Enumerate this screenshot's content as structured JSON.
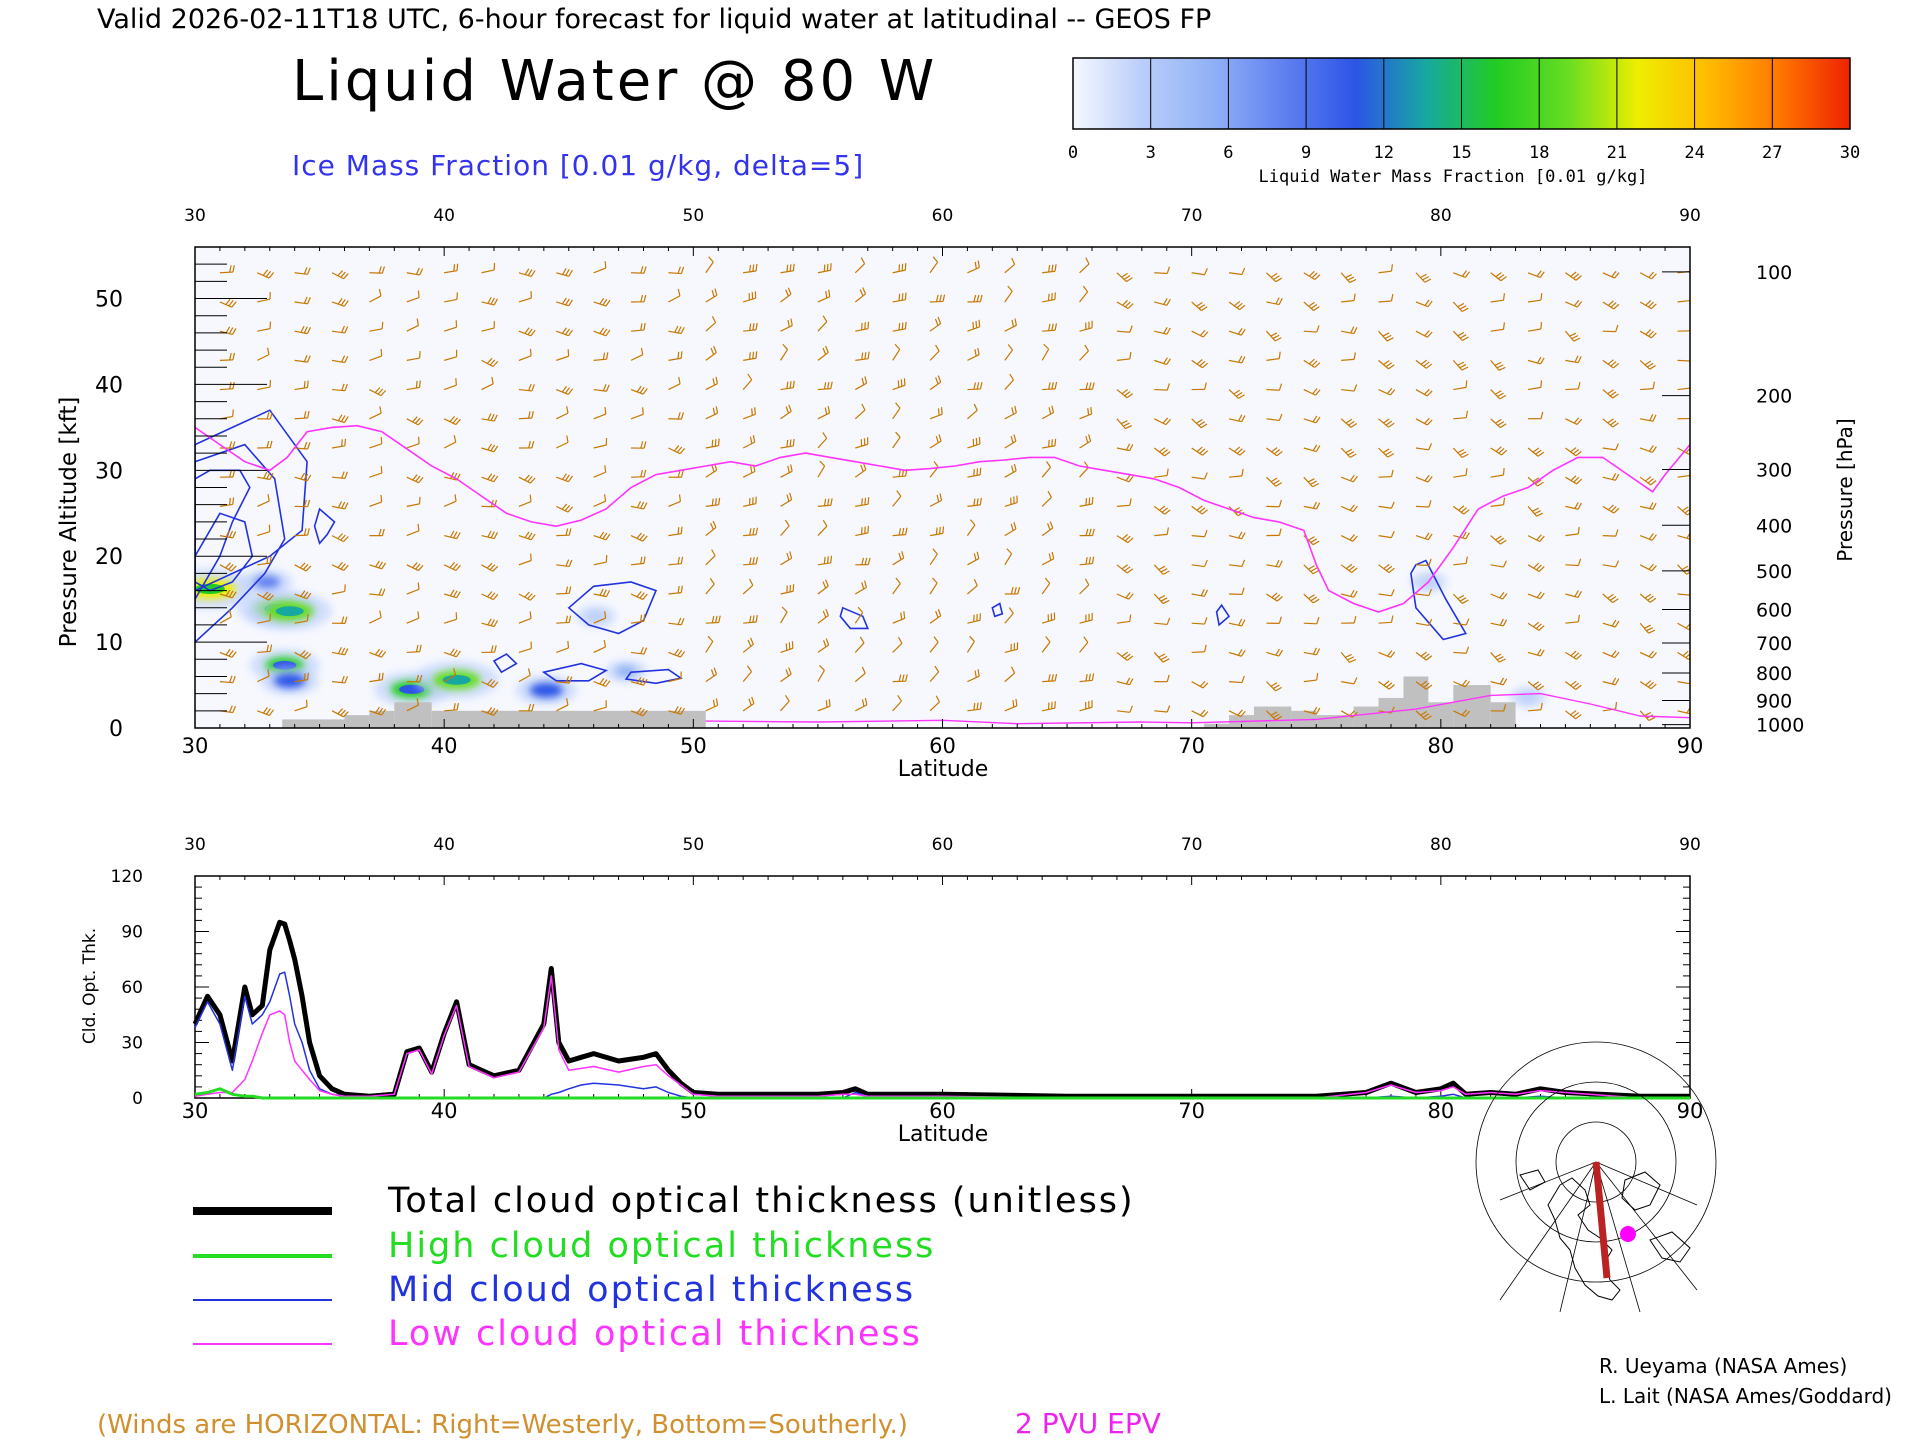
{
  "header": {
    "valid_line": "Valid 2026-02-11T18 UTC, 6-hour forecast for liquid water at latitudinal -- GEOS FP",
    "title": "Liquid Water @ 80 W",
    "subtitle": "Ice Mass Fraction [0.01 g/kg, delta=5]"
  },
  "colorbar": {
    "ticks": [
      "0",
      "3",
      "6",
      "9",
      "12",
      "15",
      "18",
      "21",
      "24",
      "27",
      "30"
    ],
    "label": "Liquid Water Mass Fraction [0.01 g/kg]",
    "colors": [
      "#f6f8fe",
      "#b9cdfa",
      "#8fb0f6",
      "#5f7ff0",
      "#2c55e6",
      "#17a8a0",
      "#22cc22",
      "#66dd22",
      "#eeee00",
      "#ffbb00",
      "#ff7700",
      "#ee2200"
    ]
  },
  "colors": {
    "wind_barb": "#c87800",
    "tropopause": "#ff33ff",
    "ice_contour": "#2233dd",
    "terrain": "#c0c0c0",
    "total_line": "#000000",
    "high_line": "#22dd22",
    "mid_line": "#2233dd",
    "low_line": "#ff33ff"
  },
  "chart_data": [
    {
      "type": "heatmap",
      "title": "Liquid Water @ 80 W",
      "xlabel": "Latitude",
      "ylabel": "Pressure Altitude [kft]",
      "ylabel_right": "Pressure [hPa]",
      "xlim": [
        30,
        90
      ],
      "ylim": [
        0,
        56
      ],
      "x_ticks": [
        "30",
        "40",
        "50",
        "60",
        "70",
        "80",
        "90"
      ],
      "top_ticks": [
        "30",
        "40",
        "50",
        "60",
        "70",
        "80",
        "90"
      ],
      "y_ticks": [
        "0",
        "10",
        "20",
        "30",
        "40",
        "50"
      ],
      "y_tick_values": [
        0,
        10,
        20,
        30,
        40,
        50
      ],
      "pressure_ticks": [
        {
          "label": "100",
          "kft": 53.1
        },
        {
          "label": "200",
          "kft": 38.7
        },
        {
          "label": "300",
          "kft": 30.1
        },
        {
          "label": "400",
          "kft": 23.6
        },
        {
          "label": "500",
          "kft": 18.3
        },
        {
          "label": "600",
          "kft": 13.8
        },
        {
          "label": "700",
          "kft": 9.9
        },
        {
          "label": "800",
          "kft": 6.4
        },
        {
          "label": "900",
          "kft": 3.2
        },
        {
          "label": "1000",
          "kft": 0.4
        }
      ],
      "liquid_water_blobs": [
        {
          "lat": 30.6,
          "kft": 16.2,
          "value": 22
        },
        {
          "lat": 33.3,
          "kft": 13.9,
          "value": 18
        },
        {
          "lat": 33.8,
          "kft": 13.6,
          "value": 20
        },
        {
          "lat": 33.6,
          "kft": 7.3,
          "value": 15
        },
        {
          "lat": 33.8,
          "kft": 5.5,
          "value": 11
        },
        {
          "lat": 32.9,
          "kft": 17.0,
          "value": 8
        },
        {
          "lat": 38.7,
          "kft": 4.5,
          "value": 17
        },
        {
          "lat": 40.5,
          "kft": 5.6,
          "value": 20
        },
        {
          "lat": 44.1,
          "kft": 4.4,
          "value": 12
        },
        {
          "lat": 46.1,
          "kft": 13.0,
          "value": 4
        },
        {
          "lat": 47.3,
          "kft": 6.6,
          "value": 5
        },
        {
          "lat": 79.5,
          "kft": 17.0,
          "value": 3
        },
        {
          "lat": 83.5,
          "kft": 3.6,
          "value": 3
        }
      ],
      "ice_contours": [
        [
          [
            30.0,
            20.0
          ],
          [
            31.0,
            25.0
          ],
          [
            32.0,
            24.0
          ],
          [
            32.3,
            20.0
          ],
          [
            31.5,
            17.0
          ],
          [
            30.6,
            16.0
          ],
          [
            30.0,
            17.0
          ]
        ],
        [
          [
            30.0,
            15.0
          ],
          [
            31.0,
            20.0
          ],
          [
            31.5,
            24.0
          ],
          [
            32.2,
            28.0
          ],
          [
            31.8,
            30.0
          ],
          [
            30.6,
            30.0
          ],
          [
            30.0,
            29.0
          ]
        ],
        [
          [
            30.0,
            10.0
          ],
          [
            31.5,
            14.0
          ],
          [
            32.8,
            18.0
          ],
          [
            33.6,
            22.0
          ],
          [
            33.2,
            29.0
          ],
          [
            32.0,
            33.0
          ],
          [
            30.0,
            31.0
          ]
        ],
        [
          [
            30.0,
            16.0
          ],
          [
            33.0,
            20.0
          ],
          [
            34.3,
            23.0
          ],
          [
            34.5,
            31.0
          ],
          [
            33.0,
            37.0
          ],
          [
            31.5,
            35.0
          ],
          [
            30.0,
            33.0
          ]
        ],
        [
          [
            35.0,
            21.5
          ],
          [
            35.3,
            22.5
          ],
          [
            35.6,
            24.0
          ],
          [
            35.0,
            25.5
          ],
          [
            34.8,
            23.5
          ]
        ],
        [
          [
            45.0,
            14.0
          ],
          [
            46.0,
            16.5
          ],
          [
            47.5,
            17.0
          ],
          [
            48.5,
            16.0
          ],
          [
            48.0,
            12.5
          ],
          [
            47.0,
            11.0
          ],
          [
            45.8,
            12.0
          ]
        ],
        [
          [
            44.0,
            6.5
          ],
          [
            45.5,
            7.5
          ],
          [
            46.5,
            6.7
          ],
          [
            45.8,
            5.5
          ],
          [
            44.5,
            5.5
          ]
        ],
        [
          [
            47.5,
            6.5
          ],
          [
            49.0,
            6.8
          ],
          [
            49.5,
            5.8
          ],
          [
            48.5,
            5.2
          ],
          [
            47.3,
            5.7
          ]
        ],
        [
          [
            42.0,
            7.8
          ],
          [
            42.5,
            8.6
          ],
          [
            42.9,
            7.5
          ],
          [
            42.3,
            6.5
          ]
        ],
        [
          [
            56.0,
            14.0
          ],
          [
            56.8,
            13.0
          ],
          [
            57.0,
            11.6
          ],
          [
            56.3,
            11.6
          ],
          [
            55.9,
            13.0
          ]
        ],
        [
          [
            62.0,
            14.0
          ],
          [
            62.3,
            14.5
          ],
          [
            62.4,
            13.3
          ],
          [
            62.1,
            13.0
          ]
        ],
        [
          [
            79.0,
            19.0
          ],
          [
            79.4,
            19.5
          ],
          [
            80.2,
            15.0
          ],
          [
            81.0,
            11.0
          ],
          [
            80.1,
            10.3
          ],
          [
            79.0,
            14.0
          ],
          [
            78.8,
            18.0
          ]
        ],
        [
          [
            71.0,
            13.5
          ],
          [
            71.2,
            14.3
          ],
          [
            71.5,
            13.0
          ],
          [
            71.1,
            12.0
          ]
        ]
      ],
      "tropopause_2pvu": [
        [
          30.0,
          35.0
        ],
        [
          31.0,
          33.0
        ],
        [
          32.0,
          31.0
        ],
        [
          33.0,
          30.0
        ],
        [
          33.7,
          31.5
        ],
        [
          34.5,
          34.5
        ],
        [
          35.5,
          35.0
        ],
        [
          36.5,
          35.2
        ],
        [
          37.5,
          34.5
        ],
        [
          38.5,
          32.5
        ],
        [
          39.5,
          30.5
        ],
        [
          40.5,
          29.0
        ],
        [
          41.5,
          27.0
        ],
        [
          42.5,
          25.0
        ],
        [
          43.5,
          24.0
        ],
        [
          44.5,
          23.5
        ],
        [
          45.5,
          24.2
        ],
        [
          46.5,
          25.5
        ],
        [
          47.5,
          28.0
        ],
        [
          48.5,
          29.5
        ],
        [
          49.5,
          30.0
        ],
        [
          50.5,
          30.5
        ],
        [
          51.5,
          31.0
        ],
        [
          52.5,
          30.5
        ],
        [
          53.5,
          31.5
        ],
        [
          54.5,
          32.0
        ],
        [
          55.5,
          31.5
        ],
        [
          56.5,
          31.0
        ],
        [
          57.5,
          30.5
        ],
        [
          58.5,
          30.0
        ],
        [
          59.5,
          30.2
        ],
        [
          60.5,
          30.5
        ],
        [
          61.5,
          31.0
        ],
        [
          62.5,
          31.2
        ],
        [
          63.5,
          31.5
        ],
        [
          64.5,
          31.5
        ],
        [
          65.5,
          30.5
        ],
        [
          66.5,
          30.0
        ],
        [
          67.5,
          29.5
        ],
        [
          68.5,
          29.0
        ],
        [
          69.5,
          28.0
        ],
        [
          70.5,
          26.5
        ],
        [
          71.5,
          25.5
        ],
        [
          72.5,
          24.5
        ],
        [
          73.5,
          24.0
        ],
        [
          74.5,
          23.0
        ],
        [
          75.0,
          19.0
        ],
        [
          75.5,
          16.0
        ],
        [
          76.5,
          14.5
        ],
        [
          77.5,
          13.5
        ],
        [
          78.5,
          14.5
        ],
        [
          79.5,
          17.0
        ],
        [
          80.5,
          21.0
        ],
        [
          81.5,
          25.5
        ],
        [
          82.5,
          27.0
        ],
        [
          83.5,
          28.0
        ],
        [
          84.5,
          30.0
        ],
        [
          85.5,
          31.5
        ],
        [
          86.5,
          31.5
        ],
        [
          87.5,
          29.5
        ],
        [
          88.5,
          27.5
        ],
        [
          89.0,
          29.5
        ],
        [
          90.0,
          33.0
        ]
      ],
      "terrain_steps": [
        [
          33.5,
          35.0,
          1.0
        ],
        [
          35.0,
          36.0,
          1.0
        ],
        [
          36.0,
          37.0,
          1.5
        ],
        [
          37.0,
          38.0,
          2.0
        ],
        [
          38.0,
          39.5,
          3.0
        ],
        [
          39.5,
          50.5,
          2.0
        ],
        [
          70.5,
          71.5,
          0.5
        ],
        [
          71.5,
          72.5,
          1.5
        ],
        [
          72.5,
          74.0,
          2.5
        ],
        [
          74.0,
          75.0,
          2.0
        ],
        [
          75.0,
          76.5,
          1.5
        ],
        [
          76.5,
          77.5,
          2.5
        ],
        [
          77.5,
          78.5,
          3.5
        ],
        [
          78.5,
          79.5,
          6.0
        ],
        [
          79.5,
          80.5,
          3.0
        ],
        [
          80.5,
          82.0,
          5.0
        ],
        [
          82.0,
          83.0,
          3.0
        ]
      ],
      "wind_barbs_note": "(Winds are HORIZONTAL: Right=Westerly, Bottom=Southerly.)",
      "epv_label": "2 PVU EPV"
    },
    {
      "type": "line",
      "xlabel": "Latitude",
      "ylabel": "Cld. Opt. Thk.",
      "xlim": [
        30,
        90
      ],
      "ylim": [
        0,
        120
      ],
      "x_ticks": [
        "30",
        "40",
        "50",
        "60",
        "70",
        "80",
        "90"
      ],
      "top_ticks": [
        "30",
        "40",
        "50",
        "60",
        "70",
        "80",
        "90"
      ],
      "y_ticks": [
        "0",
        "30",
        "60",
        "90",
        "120"
      ],
      "y_tick_values": [
        0,
        30,
        60,
        90,
        120
      ],
      "x": [
        30.0,
        30.5,
        31.0,
        31.5,
        32.0,
        32.3,
        32.7,
        33.0,
        33.4,
        33.6,
        33.8,
        34.0,
        34.3,
        34.6,
        35.0,
        35.5,
        36.0,
        37.0,
        38.0,
        38.5,
        39.0,
        39.5,
        40.0,
        40.5,
        41.0,
        41.5,
        42.0,
        43.0,
        44.0,
        44.3,
        44.6,
        45.0,
        45.5,
        46.0,
        47.0,
        48.0,
        48.5,
        49.0,
        49.5,
        50.0,
        51.0,
        55.0,
        56.0,
        56.5,
        57.0,
        60.0,
        65.0,
        70.0,
        75.0,
        77.0,
        78.0,
        79.0,
        80.0,
        80.5,
        81.0,
        82.0,
        83.0,
        84.0,
        85.0,
        88.0,
        90.0
      ],
      "series": [
        {
          "name": "Total cloud optical thickness (unitless)",
          "values": [
            40,
            55,
            45,
            20,
            60,
            45,
            50,
            80,
            95,
            94,
            85,
            75,
            55,
            30,
            12,
            5,
            2,
            1,
            2,
            25,
            27,
            14,
            35,
            52,
            18,
            15,
            12,
            15,
            40,
            70,
            30,
            20,
            22,
            24,
            20,
            22,
            24,
            15,
            8,
            3,
            2,
            2,
            3,
            5,
            2,
            2,
            1,
            1,
            1,
            3,
            8,
            3,
            5,
            8,
            2,
            3,
            2,
            5,
            3,
            1,
            1
          ]
        },
        {
          "name": "High cloud optical thickness",
          "values": [
            2,
            3,
            5,
            2,
            1,
            1,
            0,
            0,
            0,
            0,
            0,
            0,
            0,
            0,
            0,
            0,
            0,
            0,
            0,
            0,
            0,
            0,
            0,
            0,
            0,
            0,
            0,
            0,
            0,
            0,
            0,
            0,
            0,
            0,
            0,
            0,
            0,
            0,
            0,
            0,
            0,
            0,
            0,
            0,
            0,
            0,
            0,
            0,
            0,
            0,
            0,
            0,
            0,
            0,
            0,
            0,
            0,
            0,
            0,
            0,
            0
          ]
        },
        {
          "name": "Mid cloud optical thickness",
          "values": [
            38,
            52,
            40,
            15,
            55,
            40,
            45,
            52,
            67,
            68,
            55,
            40,
            30,
            15,
            5,
            2,
            1,
            0,
            0,
            0,
            0,
            0,
            0,
            0,
            0,
            0,
            0,
            0,
            0,
            2,
            3,
            5,
            7,
            8,
            7,
            5,
            6,
            3,
            1,
            0,
            0,
            0,
            0,
            3,
            1,
            0,
            0,
            0,
            0,
            0,
            1,
            0,
            1,
            2,
            0,
            0,
            0,
            1,
            0,
            0,
            0
          ]
        },
        {
          "name": "Low cloud optical thickness",
          "values": [
            1,
            2,
            3,
            3,
            10,
            20,
            35,
            45,
            47,
            45,
            30,
            20,
            15,
            10,
            4,
            2,
            1,
            1,
            2,
            24,
            26,
            13,
            34,
            50,
            17,
            14,
            11,
            14,
            38,
            66,
            26,
            15,
            16,
            17,
            14,
            17,
            18,
            12,
            7,
            2,
            1,
            1,
            2,
            2,
            1,
            1,
            0,
            0,
            0,
            3,
            7,
            3,
            4,
            6,
            2,
            3,
            2,
            4,
            3,
            0,
            0
          ]
        }
      ]
    }
  ],
  "legend": {
    "items": [
      {
        "label": "Total cloud optical thickness (unitless)",
        "color": "#000000"
      },
      {
        "label": "High cloud optical thickness",
        "color": "#22dd22"
      },
      {
        "label": "Mid cloud optical thickness",
        "color": "#2233dd"
      },
      {
        "label": "Low cloud optical thickness",
        "color": "#ff33ff"
      }
    ]
  },
  "credits": {
    "line1": "R. Ueyama (NASA Ames)",
    "line2": "L. Lait (NASA Ames/Goddard)"
  },
  "map_inset": {
    "icon": "north-polar-map-icon",
    "section_color": "#bb2222",
    "marker_color": "#ff00ff"
  }
}
